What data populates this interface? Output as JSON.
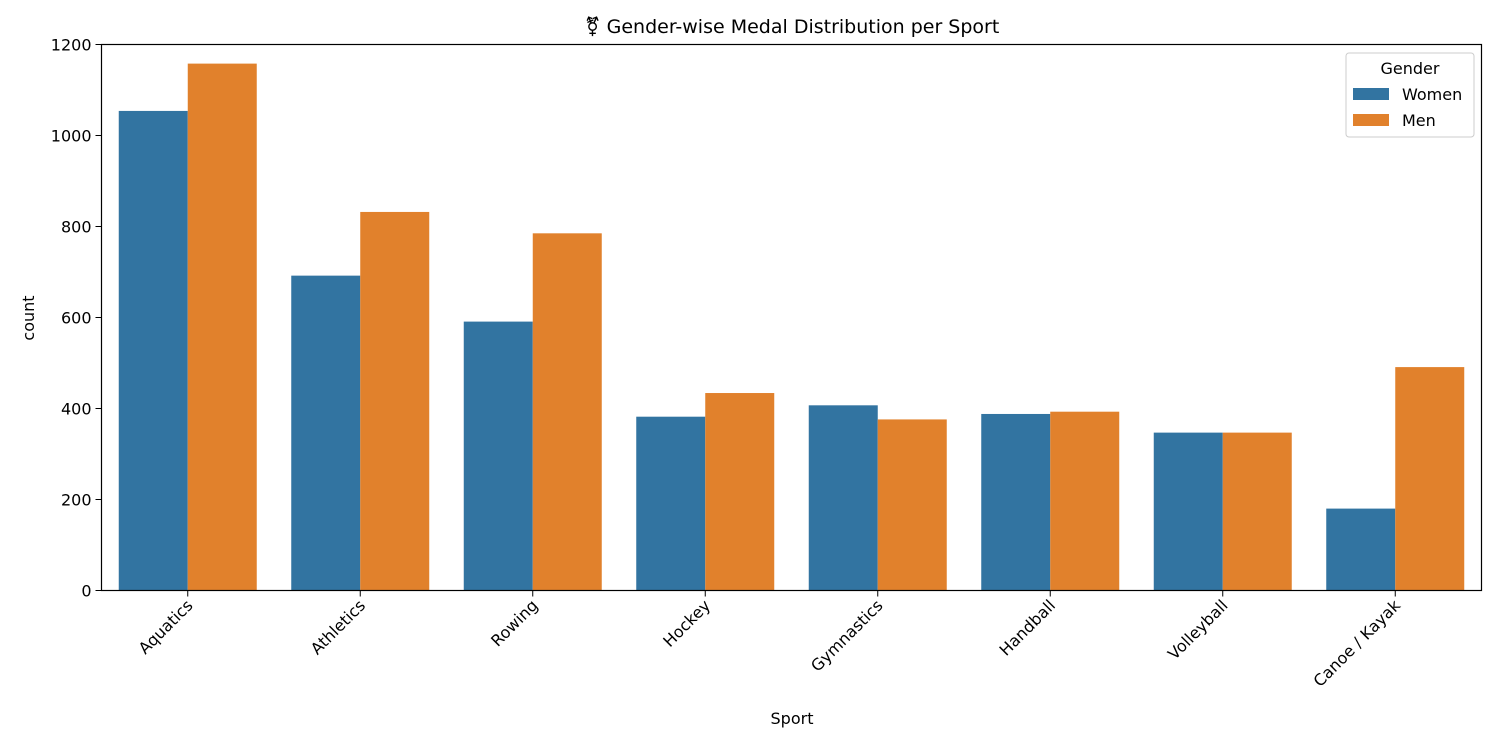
{
  "chart_data": {
    "type": "bar",
    "title": "⚧ Gender-wise Medal Distribution per Sport",
    "xlabel": "Sport",
    "ylabel": "count",
    "categories": [
      "Aquatics",
      "Athletics",
      "Rowing",
      "Hockey",
      "Gymnastics",
      "Handball",
      "Volleyball",
      "Canoe / Kayak"
    ],
    "series": [
      {
        "name": "Women",
        "color": "#3274a1",
        "values": [
          1054,
          692,
          591,
          382,
          407,
          388,
          347,
          180
        ]
      },
      {
        "name": "Men",
        "color": "#e1812c",
        "values": [
          1158,
          832,
          785,
          434,
          376,
          393,
          347,
          491
        ]
      }
    ],
    "ylim": [
      0,
      1200
    ],
    "yticks": [
      0,
      200,
      400,
      600,
      800,
      1000,
      1200
    ],
    "legend": {
      "title": "Gender",
      "position": "top-right"
    },
    "grid": false
  }
}
